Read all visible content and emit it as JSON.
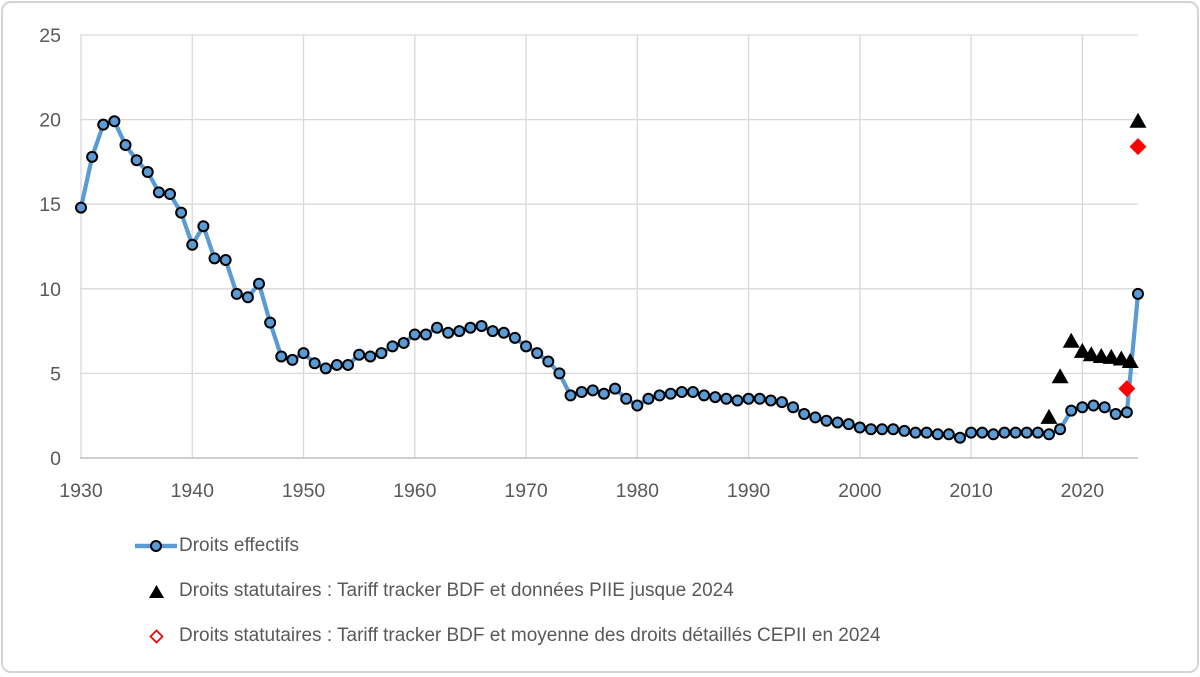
{
  "chart_data": {
    "type": "line",
    "title": "",
    "grid": true,
    "legend_position": "bottom-left",
    "x_axis": {
      "min": 1930,
      "max": 2025,
      "ticks": [
        1930,
        1940,
        1950,
        1960,
        1970,
        1980,
        1990,
        2000,
        2010,
        2020
      ]
    },
    "y_axis": {
      "min": 0,
      "max": 25,
      "ticks": [
        0,
        5,
        10,
        15,
        20,
        25
      ]
    },
    "series": [
      {
        "name": "Droits effectifs",
        "type": "line-with-markers",
        "marker": "circle",
        "line_color": "#5B9BD5",
        "marker_fill": "#5B9BD5",
        "marker_stroke": "#000000",
        "start_year": 1930,
        "values": [
          14.8,
          17.8,
          19.7,
          19.9,
          18.5,
          17.6,
          16.9,
          15.7,
          15.6,
          14.5,
          12.6,
          13.7,
          11.8,
          11.7,
          9.7,
          9.5,
          10.3,
          8.0,
          6.0,
          5.8,
          6.2,
          5.6,
          5.3,
          5.5,
          5.5,
          6.1,
          6.0,
          6.2,
          6.6,
          6.8,
          7.3,
          7.3,
          7.7,
          7.4,
          7.5,
          7.7,
          7.8,
          7.5,
          7.4,
          7.1,
          6.6,
          6.2,
          5.7,
          5.0,
          3.7,
          3.9,
          4.0,
          3.8,
          4.1,
          3.5,
          3.1,
          3.5,
          3.7,
          3.8,
          3.9,
          3.9,
          3.7,
          3.6,
          3.5,
          3.4,
          3.5,
          3.5,
          3.4,
          3.3,
          3.0,
          2.6,
          2.4,
          2.2,
          2.1,
          2.0,
          1.8,
          1.7,
          1.7,
          1.7,
          1.6,
          1.5,
          1.5,
          1.4,
          1.4,
          1.2,
          1.5,
          1.5,
          1.4,
          1.5,
          1.5,
          1.5,
          1.5,
          1.4,
          1.7,
          2.8,
          3.0,
          3.1,
          3.0,
          2.6,
          2.7,
          9.7
        ]
      },
      {
        "name": "Droits statutaires : Tariff tracker BDF et données PIIE jusque 2024",
        "type": "scatter",
        "marker": "filled-triangle",
        "color": "#000000",
        "points": [
          [
            2017,
            2.4
          ],
          [
            2018,
            4.8
          ],
          [
            2019,
            6.9
          ],
          [
            2020,
            6.3
          ],
          [
            2020.8,
            6.1
          ],
          [
            2021.7,
            6.0
          ],
          [
            2022.6,
            5.95
          ],
          [
            2023.5,
            5.85
          ],
          [
            2024.3,
            5.7
          ],
          [
            2025,
            19.9
          ]
        ]
      },
      {
        "name": "Droits statutaires : Tariff tracker BDF et moyenne des droits détaillés CEPII en 2024",
        "type": "scatter",
        "marker": "diamond",
        "color": "#FF0000",
        "points": [
          [
            2024,
            4.1
          ],
          [
            2025,
            18.4
          ]
        ]
      }
    ],
    "style": {
      "gridline_color": "#D9D9D9",
      "axis_line_color": "#BFBFBF",
      "tick_label_color": "#595959",
      "legend_text_color": "#595959"
    }
  }
}
